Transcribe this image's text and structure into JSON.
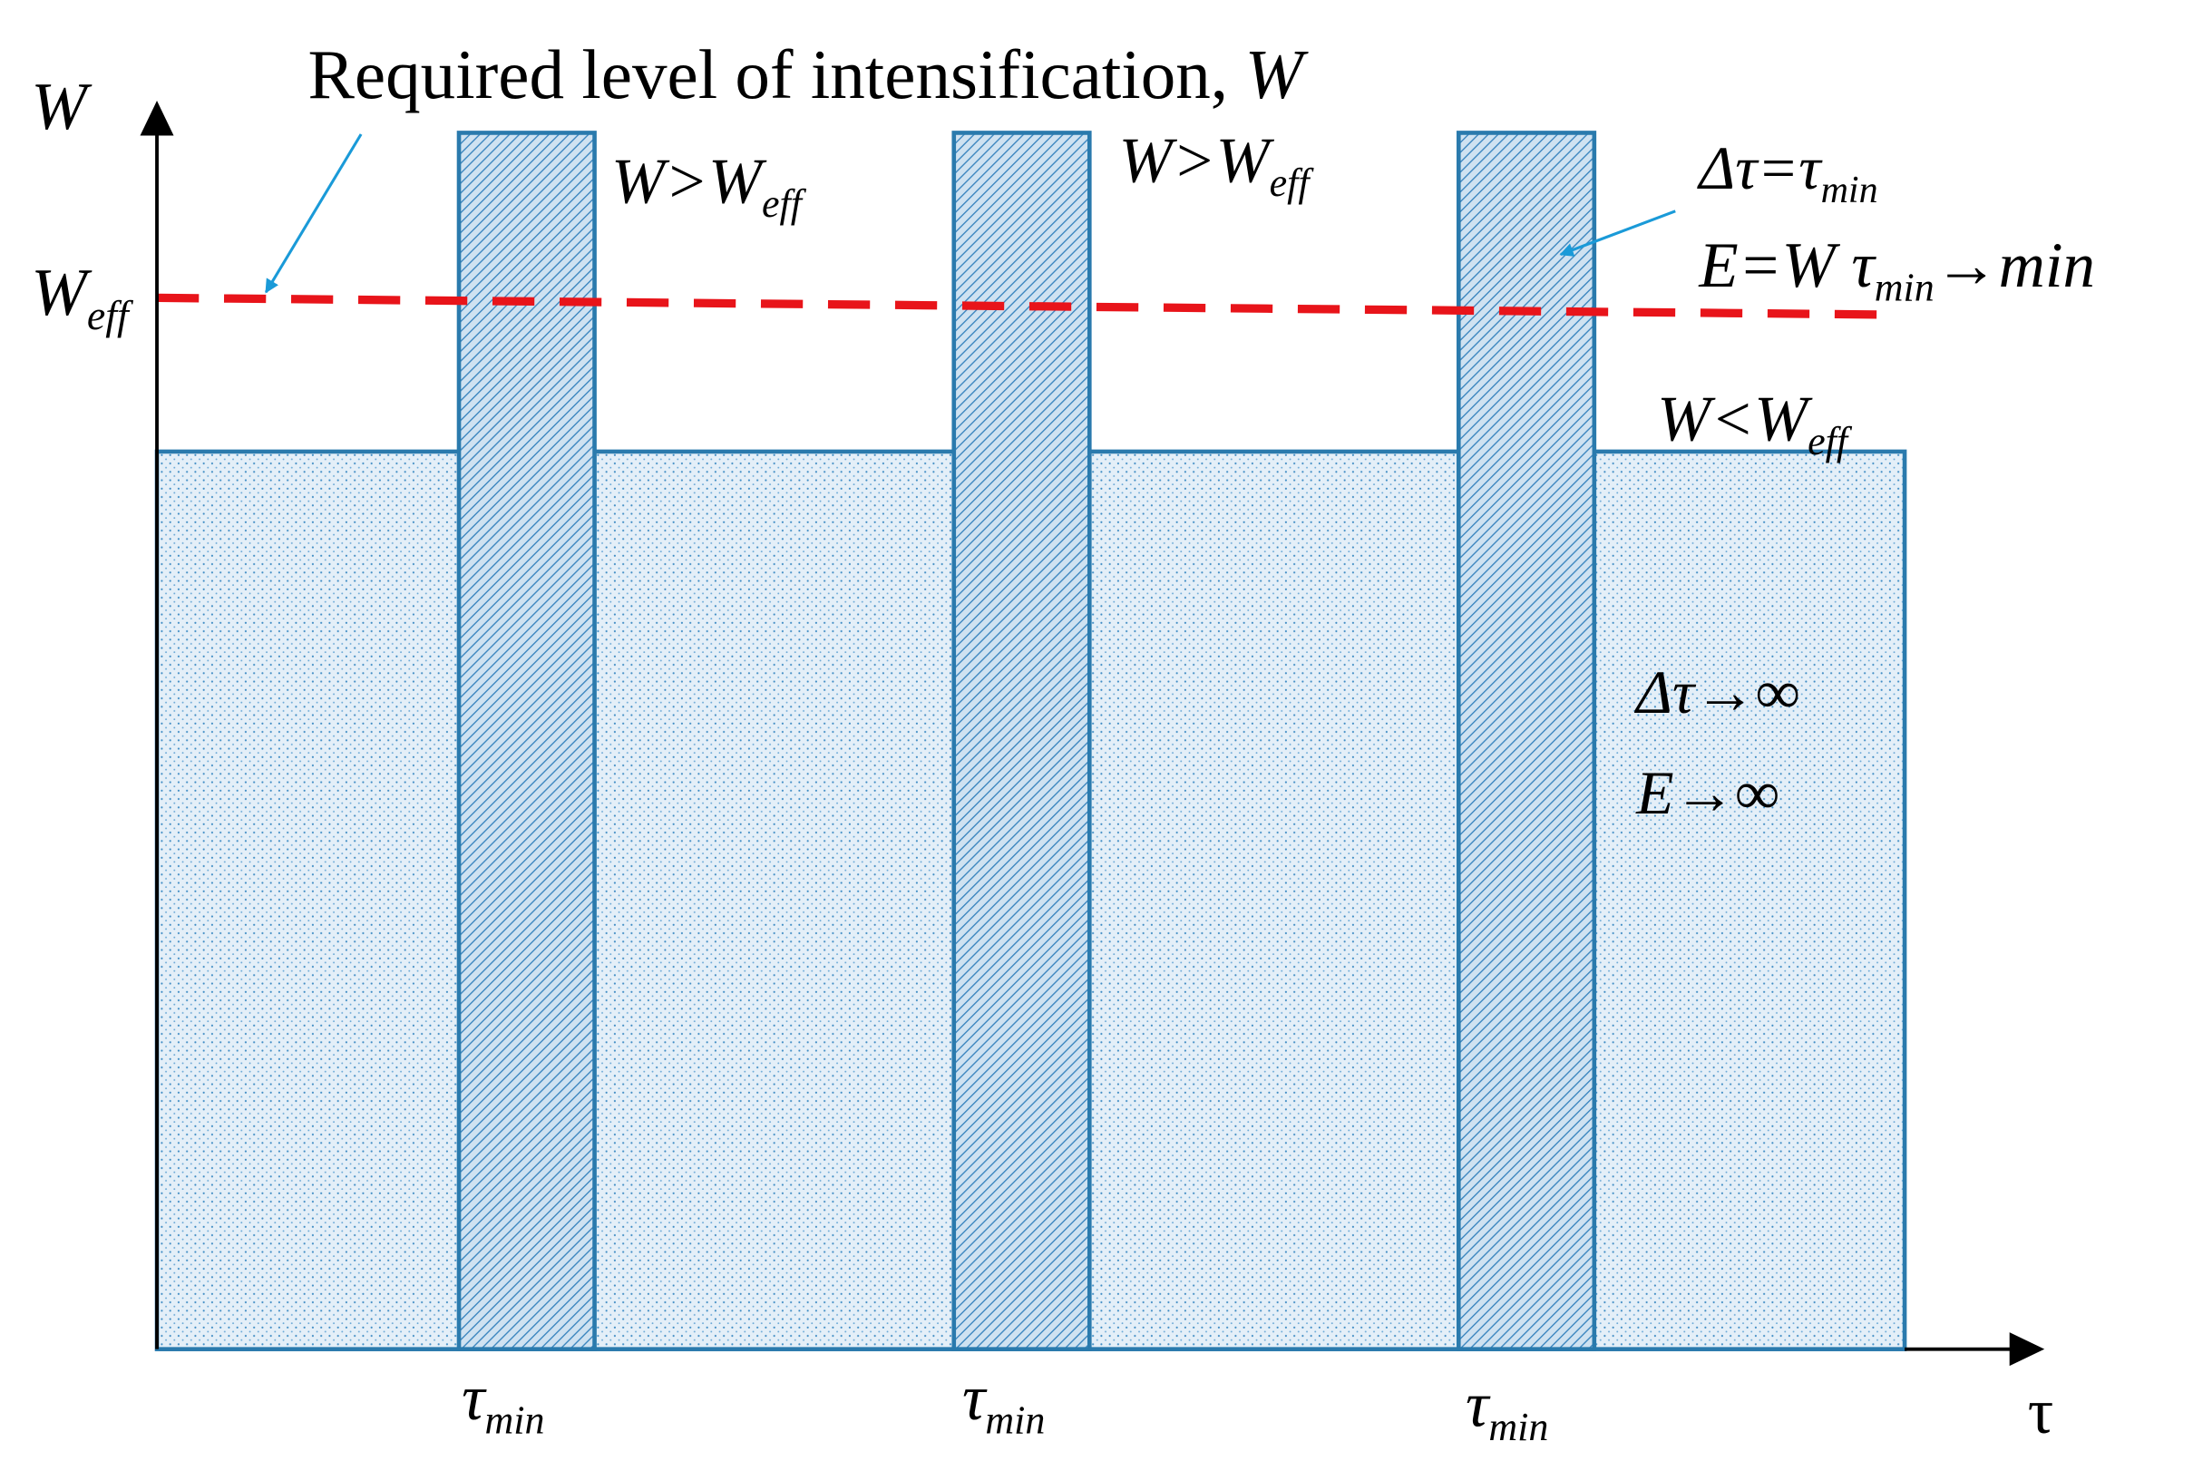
{
  "axes": {
    "y_label": "W",
    "x_label": "τ"
  },
  "title": {
    "text": "Required level of intensification,",
    "var": "W"
  },
  "threshold_label": {
    "base": "W",
    "sub": "eff"
  },
  "labels": [
    {
      "base": "W>W",
      "sub": "eff"
    },
    {
      "base": "W>W",
      "sub": "eff"
    },
    {
      "base": "Δτ=τ",
      "sub": "min"
    },
    {
      "base": "E=W τ",
      "sub": "min",
      "after": "→min"
    },
    {
      "base": "W<W",
      "sub": "eff"
    },
    {
      "base": "Δτ→∞"
    },
    {
      "base": "E→∞"
    }
  ],
  "pulses": [
    {
      "base": "τ",
      "sub": "min"
    },
    {
      "base": "τ",
      "sub": "min"
    },
    {
      "base": "τ",
      "sub": "min"
    }
  ]
}
